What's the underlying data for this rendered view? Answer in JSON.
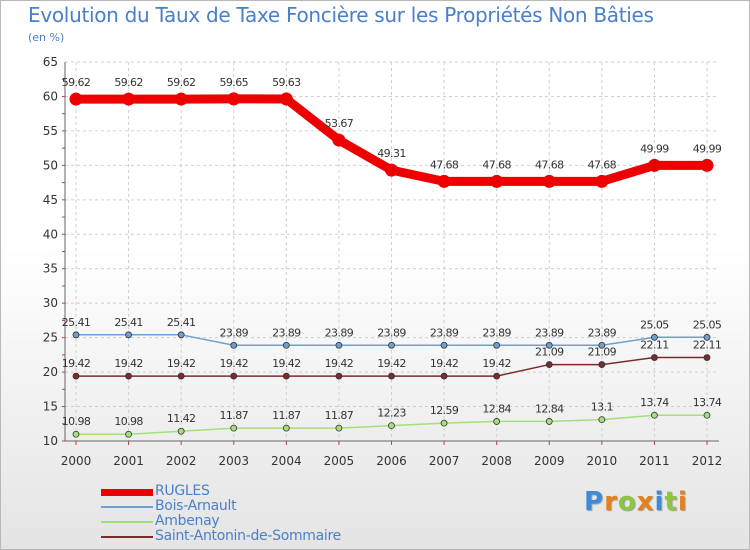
{
  "header": {
    "title": "Evolution du Taux de Taxe Foncière sur les Propriétés Non Bâties",
    "unit": "(en %)"
  },
  "brand": {
    "letters": [
      "P",
      "r",
      "o",
      "x",
      "i",
      "t",
      "i"
    ],
    "colors": [
      "#3e8ad6",
      "#e5801a",
      "#8cc63f",
      "#e5801a",
      "#3e8ad6",
      "#8cc63f",
      "#e5801a"
    ]
  },
  "chart_data": {
    "type": "line",
    "title": "Evolution du Taux de Taxe Foncière sur les Propriétés Non Bâties",
    "ylabel": "(en %)",
    "xlabel": "",
    "ylim": [
      10,
      65
    ],
    "y_ticks": [
      10,
      15,
      20,
      25,
      30,
      35,
      40,
      45,
      50,
      55,
      60,
      65
    ],
    "y_tick_labels": [
      "10",
      "15",
      "20",
      "25",
      "30",
      "35",
      "40",
      "45",
      "50",
      "55",
      "60",
      "65"
    ],
    "grid": true,
    "legend_position": "bottom-left",
    "categories": [
      "2000",
      "2001",
      "2002",
      "2003",
      "2004",
      "2005",
      "2006",
      "2007",
      "2008",
      "2009",
      "2010",
      "2011",
      "2012"
    ],
    "series": [
      {
        "name": "RUGLES",
        "color": "#ee0000",
        "values": [
          59.62,
          59.62,
          59.62,
          59.65,
          59.63,
          53.67,
          49.31,
          47.68,
          47.68,
          47.68,
          47.68,
          49.99,
          49.99
        ],
        "labels": [
          "59.62",
          "59.62",
          "59.62",
          "59.65",
          "59.63",
          "53.67",
          "49.31",
          "47.68",
          "47.68",
          "47.68",
          "47.68",
          "49.99",
          "49.99"
        ]
      },
      {
        "name": "Bois-Arnault",
        "color": "#6da0d0",
        "values": [
          25.41,
          25.41,
          25.41,
          23.89,
          23.89,
          23.89,
          23.89,
          23.89,
          23.89,
          23.89,
          23.89,
          25.05,
          25.05
        ],
        "labels": [
          "25.41",
          "25.41",
          "25.41",
          "23.89",
          "23.89",
          "23.89",
          "23.89",
          "23.89",
          "23.89",
          "23.89",
          "23.89",
          "25.05",
          "25.05"
        ]
      },
      {
        "name": "Ambenay",
        "color": "#a4df7c",
        "values": [
          10.98,
          10.98,
          11.42,
          11.87,
          11.87,
          11.87,
          12.23,
          12.59,
          12.84,
          12.84,
          13.1,
          13.74,
          13.74
        ],
        "labels": [
          "10.98",
          "10.98",
          "11.42",
          "11.87",
          "11.87",
          "11.87",
          "12.23",
          "12.59",
          "12.84",
          "12.84",
          "13.1",
          "13.74",
          "13.74"
        ]
      },
      {
        "name": "Saint-Antonin-de-Sommaire",
        "color": "#7a2b2b",
        "values": [
          19.42,
          19.42,
          19.42,
          19.42,
          19.42,
          19.42,
          19.42,
          19.42,
          19.42,
          21.09,
          21.09,
          22.11,
          22.11
        ],
        "labels": [
          "19.42",
          "19.42",
          "19.42",
          "19.42",
          "19.42",
          "19.42",
          "19.42",
          "19.42",
          "19.42",
          "21.09",
          "21.09",
          "22.11",
          "22.11"
        ]
      }
    ]
  }
}
